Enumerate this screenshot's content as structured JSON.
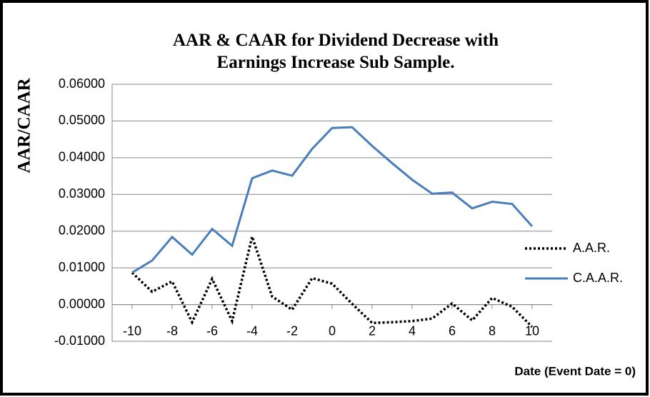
{
  "chart_data": {
    "type": "line",
    "title": "AAR & CAAR for Dividend Decrease with Earnings Increase Sub Sample.",
    "y_label": "AAR/CAAR",
    "x_label": "Date (Event Date = 0)",
    "x": [
      -10,
      -9,
      -8,
      -7,
      -6,
      -5,
      -4,
      -3,
      -2,
      -1,
      0,
      1,
      2,
      3,
      4,
      5,
      6,
      7,
      8,
      9,
      10
    ],
    "series": [
      {
        "name": "A.A.R.",
        "color": "#000000",
        "dash": "dotted",
        "values": [
          0.0087,
          0.0035,
          0.0063,
          -0.0048,
          0.007,
          -0.0045,
          0.0185,
          0.0022,
          -0.0014,
          0.0072,
          0.0057,
          0.0002,
          -0.005,
          -0.0048,
          -0.0045,
          -0.0038,
          0.0003,
          -0.0043,
          0.0018,
          -0.0006,
          -0.0061
        ]
      },
      {
        "name": "C.A.A.R.",
        "color": "#4a7ebb",
        "dash": "solid",
        "values": [
          0.0087,
          0.012,
          0.0184,
          0.0136,
          0.0206,
          0.016,
          0.0344,
          0.0365,
          0.0351,
          0.0424,
          0.0481,
          0.0483,
          0.0432,
          0.0385,
          0.034,
          0.0302,
          0.0305,
          0.0262,
          0.028,
          0.0274,
          0.0213
        ]
      }
    ],
    "xlim": [
      -11,
      11
    ],
    "xticks": [
      -10,
      -8,
      -6,
      -4,
      -2,
      0,
      2,
      4,
      6,
      8,
      10
    ],
    "ylim": [
      -0.01,
      0.06
    ],
    "yticks": [
      {
        "value": -0.01,
        "label": "-0.01000"
      },
      {
        "value": 0,
        "label": "0.00000"
      },
      {
        "value": 0.01,
        "label": "0.01000"
      },
      {
        "value": 0.02,
        "label": "0.02000"
      },
      {
        "value": 0.03,
        "label": "0.03000"
      },
      {
        "value": 0.04,
        "label": "0.04000"
      },
      {
        "value": 0.05,
        "label": "0.05000"
      },
      {
        "value": 0.06,
        "label": "0.06000"
      }
    ],
    "grid": true,
    "legend": "right"
  }
}
